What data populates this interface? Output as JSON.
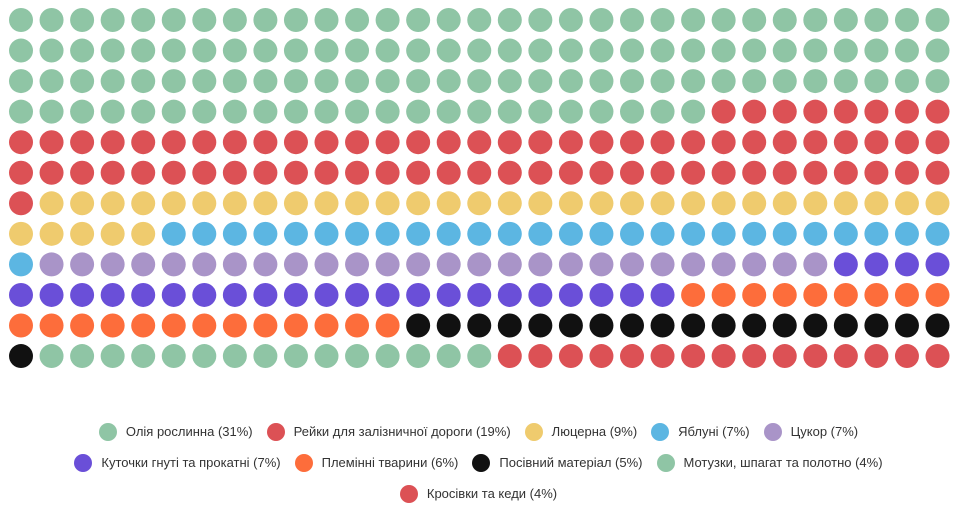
{
  "chart_data": {
    "type": "waffle",
    "grid": {
      "rows": 12,
      "columns": 31
    },
    "series": [
      {
        "name": "Олія рослинна",
        "percent_label": "31%",
        "dots": 116,
        "color": "#8fc5a5"
      },
      {
        "name": "Рейки для залізничної дороги",
        "percent_label": "19%",
        "dots": 71,
        "color": "#dc5155"
      },
      {
        "name": "Люцерна",
        "percent_label": "9%",
        "dots": 35,
        "color": "#efcb6e"
      },
      {
        "name": "Яблуні",
        "percent_label": "7%",
        "dots": 27,
        "color": "#5cb6e2"
      },
      {
        "name": "Цукор",
        "percent_label": "7%",
        "dots": 26,
        "color": "#a994c8"
      },
      {
        "name": "Куточки гнуті та прокатні",
        "percent_label": "7%",
        "dots": 26,
        "color": "#6a4fd8"
      },
      {
        "name": "Племінні тварини",
        "percent_label": "6%",
        "dots": 22,
        "color": "#fd6d3b"
      },
      {
        "name": "Посівний матеріал",
        "percent_label": "5%",
        "dots": 19,
        "color": "#111111"
      },
      {
        "name": "Мотузки, шпагат та полотно",
        "percent_label": "4%",
        "dots": 15,
        "color": "#8fc5a5"
      },
      {
        "name": "Кросівки та кеди",
        "percent_label": "4%",
        "dots": 15,
        "color": "#dc5155"
      }
    ],
    "legend_position": "bottom"
  },
  "legend": {
    "rows": [
      [
        0,
        1,
        2,
        3,
        4
      ],
      [
        5,
        6,
        7,
        8
      ],
      [
        9
      ]
    ]
  }
}
